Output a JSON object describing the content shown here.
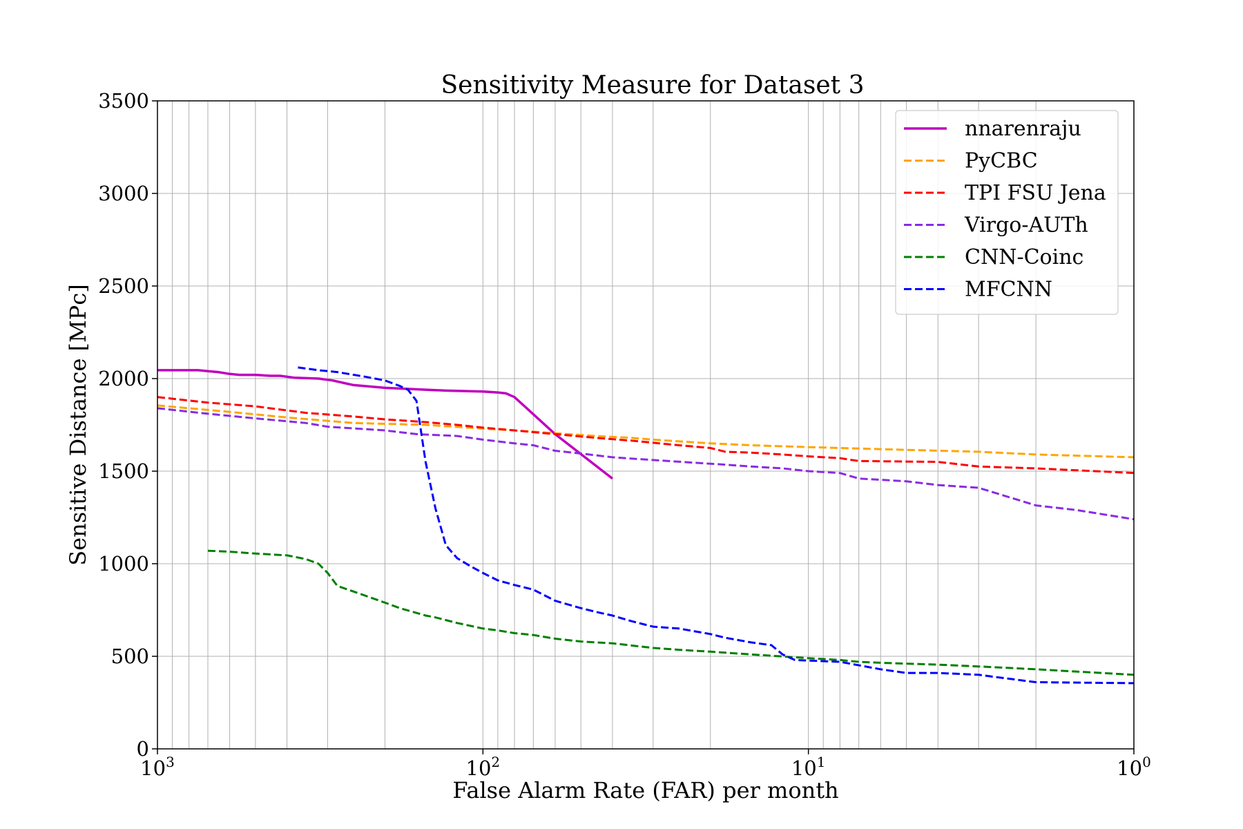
{
  "chart_data": {
    "type": "line",
    "title": "Sensitivity Measure for Dataset 3",
    "xlabel": "False Alarm Rate (FAR) per month",
    "ylabel": "Sensitive Distance [MPc]",
    "x_scale": "log",
    "x_reversed": true,
    "xlim": [
      1000,
      1
    ],
    "ylim": [
      0,
      3500
    ],
    "x_ticks": [
      {
        "value": 1000,
        "base": "10",
        "exp": "3"
      },
      {
        "value": 100,
        "base": "10",
        "exp": "2"
      },
      {
        "value": 10,
        "base": "10",
        "exp": "1"
      },
      {
        "value": 1,
        "base": "10",
        "exp": "0"
      }
    ],
    "y_ticks": [
      0,
      500,
      1000,
      1500,
      2000,
      2500,
      3000,
      3500
    ],
    "grid": true,
    "legend_position": "top-right",
    "series": [
      {
        "name": "nnarenraju",
        "color": "#bf00bf",
        "style": "solid",
        "points": [
          [
            1000,
            2045
          ],
          [
            750,
            2045
          ],
          [
            700,
            2040
          ],
          [
            650,
            2035
          ],
          [
            600,
            2025
          ],
          [
            560,
            2020
          ],
          [
            500,
            2020
          ],
          [
            450,
            2015
          ],
          [
            420,
            2015
          ],
          [
            380,
            2005
          ],
          [
            320,
            2000
          ],
          [
            290,
            1990
          ],
          [
            250,
            1965
          ],
          [
            200,
            1950
          ],
          [
            150,
            1940
          ],
          [
            130,
            1935
          ],
          [
            100,
            1930
          ],
          [
            90,
            1925
          ],
          [
            85,
            1920
          ],
          [
            80,
            1900
          ],
          [
            60,
            1700
          ],
          [
            40,
            1460
          ]
        ]
      },
      {
        "name": "PyCBC",
        "color": "#ffa500",
        "style": "dashed",
        "points": [
          [
            1000,
            1855
          ],
          [
            600,
            1820
          ],
          [
            400,
            1790
          ],
          [
            250,
            1760
          ],
          [
            150,
            1750
          ],
          [
            100,
            1730
          ],
          [
            80,
            1720
          ],
          [
            60,
            1705
          ],
          [
            45,
            1690
          ],
          [
            35,
            1680
          ],
          [
            30,
            1670
          ],
          [
            20,
            1650
          ],
          [
            15,
            1640
          ],
          [
            10,
            1630
          ],
          [
            5,
            1615
          ],
          [
            3,
            1605
          ],
          [
            2,
            1590
          ],
          [
            1,
            1575
          ]
        ]
      },
      {
        "name": "TPI FSU Jena",
        "color": "#ff0000",
        "style": "dashed",
        "points": [
          [
            1000,
            1900
          ],
          [
            700,
            1870
          ],
          [
            500,
            1850
          ],
          [
            350,
            1815
          ],
          [
            250,
            1795
          ],
          [
            200,
            1780
          ],
          [
            150,
            1765
          ],
          [
            120,
            1750
          ],
          [
            100,
            1735
          ],
          [
            80,
            1720
          ],
          [
            60,
            1700
          ],
          [
            45,
            1680
          ],
          [
            35,
            1665
          ],
          [
            25,
            1640
          ],
          [
            20,
            1625
          ],
          [
            18,
            1605
          ],
          [
            15,
            1600
          ],
          [
            12,
            1590
          ],
          [
            10,
            1580
          ],
          [
            8,
            1570
          ],
          [
            7,
            1555
          ],
          [
            4,
            1550
          ],
          [
            3,
            1525
          ],
          [
            2,
            1515
          ],
          [
            1,
            1490
          ]
        ]
      },
      {
        "name": "Virgo-AUTh",
        "color": "#8a2be2",
        "style": "dashed",
        "points": [
          [
            1000,
            1840
          ],
          [
            700,
            1810
          ],
          [
            500,
            1785
          ],
          [
            350,
            1760
          ],
          [
            300,
            1740
          ],
          [
            200,
            1720
          ],
          [
            160,
            1700
          ],
          [
            120,
            1690
          ],
          [
            100,
            1670
          ],
          [
            80,
            1650
          ],
          [
            70,
            1640
          ],
          [
            60,
            1610
          ],
          [
            50,
            1595
          ],
          [
            40,
            1575
          ],
          [
            30,
            1560
          ],
          [
            20,
            1540
          ],
          [
            18,
            1535
          ],
          [
            15,
            1525
          ],
          [
            12,
            1515
          ],
          [
            10,
            1500
          ],
          [
            8,
            1490
          ],
          [
            7,
            1460
          ],
          [
            5,
            1445
          ],
          [
            4,
            1425
          ],
          [
            3,
            1410
          ],
          [
            2,
            1315
          ],
          [
            1.5,
            1290
          ],
          [
            1,
            1240
          ]
        ]
      },
      {
        "name": "CNN-Coinc",
        "color": "#008000",
        "style": "dashed",
        "points": [
          [
            700,
            1070
          ],
          [
            600,
            1065
          ],
          [
            500,
            1055
          ],
          [
            400,
            1045
          ],
          [
            350,
            1025
          ],
          [
            320,
            1000
          ],
          [
            300,
            950
          ],
          [
            280,
            880
          ],
          [
            250,
            850
          ],
          [
            200,
            790
          ],
          [
            180,
            760
          ],
          [
            150,
            720
          ],
          [
            140,
            710
          ],
          [
            120,
            680
          ],
          [
            100,
            650
          ],
          [
            90,
            640
          ],
          [
            80,
            625
          ],
          [
            70,
            615
          ],
          [
            60,
            595
          ],
          [
            50,
            580
          ],
          [
            40,
            570
          ],
          [
            30,
            545
          ],
          [
            25,
            535
          ],
          [
            20,
            525
          ],
          [
            15,
            510
          ],
          [
            10,
            490
          ],
          [
            8,
            480
          ],
          [
            7,
            470
          ],
          [
            6,
            465
          ],
          [
            4,
            455
          ],
          [
            3,
            445
          ],
          [
            2,
            430
          ],
          [
            1,
            400
          ]
        ]
      },
      {
        "name": "MFCNN",
        "color": "#0000ff",
        "style": "dashed",
        "points": [
          [
            370,
            2060
          ],
          [
            320,
            2045
          ],
          [
            280,
            2035
          ],
          [
            230,
            2010
          ],
          [
            200,
            1990
          ],
          [
            180,
            1960
          ],
          [
            170,
            1940
          ],
          [
            160,
            1880
          ],
          [
            150,
            1550
          ],
          [
            140,
            1300
          ],
          [
            130,
            1100
          ],
          [
            120,
            1030
          ],
          [
            110,
            990
          ],
          [
            100,
            950
          ],
          [
            90,
            910
          ],
          [
            80,
            885
          ],
          [
            70,
            860
          ],
          [
            60,
            800
          ],
          [
            50,
            760
          ],
          [
            45,
            740
          ],
          [
            40,
            720
          ],
          [
            35,
            690
          ],
          [
            30,
            660
          ],
          [
            25,
            650
          ],
          [
            20,
            620
          ],
          [
            18,
            600
          ],
          [
            15,
            575
          ],
          [
            13,
            560
          ],
          [
            12,
            510
          ],
          [
            11,
            480
          ],
          [
            8,
            470
          ],
          [
            6,
            430
          ],
          [
            5,
            410
          ],
          [
            4,
            410
          ],
          [
            3,
            400
          ],
          [
            2,
            360
          ],
          [
            1,
            355
          ]
        ]
      }
    ]
  }
}
